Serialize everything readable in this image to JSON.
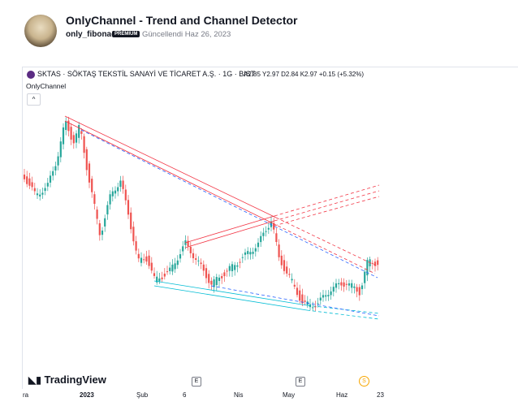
{
  "header": {
    "title": "OnlyChannel - Trend and Channel Detector",
    "author": "only_fibonacci",
    "badge": "PREMIUM",
    "updated": "Güncellendi Haz 26, 2023"
  },
  "chart": {
    "symbol": "SKTAS · SÖKTAŞ TEKSTİL SANAYİ VE TİCARET A.Ş. · 1G · BIST",
    "ohlc": [
      "A2.85",
      "Y2.97",
      "D2.84",
      "K2.97"
    ],
    "change": "+0.15 (+5.32%)",
    "indicator": "OnlyChannel",
    "brand": "TradingView",
    "x_labels": [
      "ra",
      "2023",
      "Şub",
      "6",
      "Nis",
      "May",
      "Haz",
      "23"
    ],
    "markers": [
      "E",
      "E",
      "S"
    ]
  }
}
